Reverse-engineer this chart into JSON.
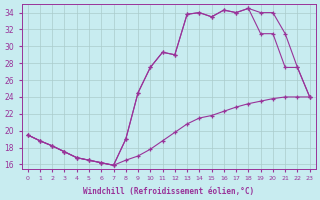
{
  "xlabel": "Windchill (Refroidissement éolien,°C)",
  "bg_color": "#c8ecf0",
  "line_color": "#993399",
  "grid_color": "#aacccc",
  "xlim": [
    -0.5,
    23.5
  ],
  "ylim": [
    15.5,
    35
  ],
  "yticks": [
    16,
    18,
    20,
    22,
    24,
    26,
    28,
    30,
    32,
    34
  ],
  "xticks": [
    0,
    1,
    2,
    3,
    4,
    5,
    6,
    7,
    8,
    9,
    10,
    11,
    12,
    13,
    14,
    15,
    16,
    17,
    18,
    19,
    20,
    21,
    22,
    23
  ],
  "line1_x": [
    0,
    1,
    2,
    3,
    4,
    5,
    6,
    7,
    8,
    9,
    10,
    11,
    12,
    13,
    14,
    15,
    16,
    17,
    18,
    19,
    20,
    21,
    22,
    23
  ],
  "line1_y": [
    19.5,
    18.8,
    18.2,
    17.5,
    16.8,
    16.5,
    16.2,
    15.9,
    19.0,
    24.5,
    27.5,
    29.3,
    29.0,
    33.8,
    34.0,
    33.5,
    34.3,
    34.0,
    34.5,
    34.0,
    34.0,
    31.5,
    27.5,
    24.0
  ],
  "line2_x": [
    0,
    1,
    2,
    3,
    4,
    5,
    6,
    7,
    8,
    9,
    10,
    11,
    12,
    13,
    14,
    15,
    16,
    17,
    18,
    19,
    20,
    21,
    22,
    23
  ],
  "line2_y": [
    19.5,
    18.8,
    18.2,
    17.5,
    16.8,
    16.5,
    16.2,
    15.9,
    19.0,
    24.5,
    27.5,
    29.3,
    29.0,
    33.8,
    34.0,
    33.5,
    34.3,
    34.0,
    34.5,
    31.5,
    31.5,
    27.5,
    27.5,
    24.0
  ],
  "line3_x": [
    0,
    1,
    2,
    3,
    4,
    5,
    6,
    7,
    8,
    9,
    10,
    11,
    12,
    13,
    14,
    15,
    16,
    17,
    18,
    19,
    20,
    21,
    22,
    23
  ],
  "line3_y": [
    19.5,
    18.8,
    18.2,
    17.5,
    16.8,
    16.5,
    16.2,
    15.9,
    16.5,
    17.0,
    17.8,
    18.8,
    19.8,
    20.8,
    21.5,
    21.8,
    22.3,
    22.8,
    23.2,
    23.5,
    23.8,
    24.0,
    24.0,
    24.0
  ]
}
